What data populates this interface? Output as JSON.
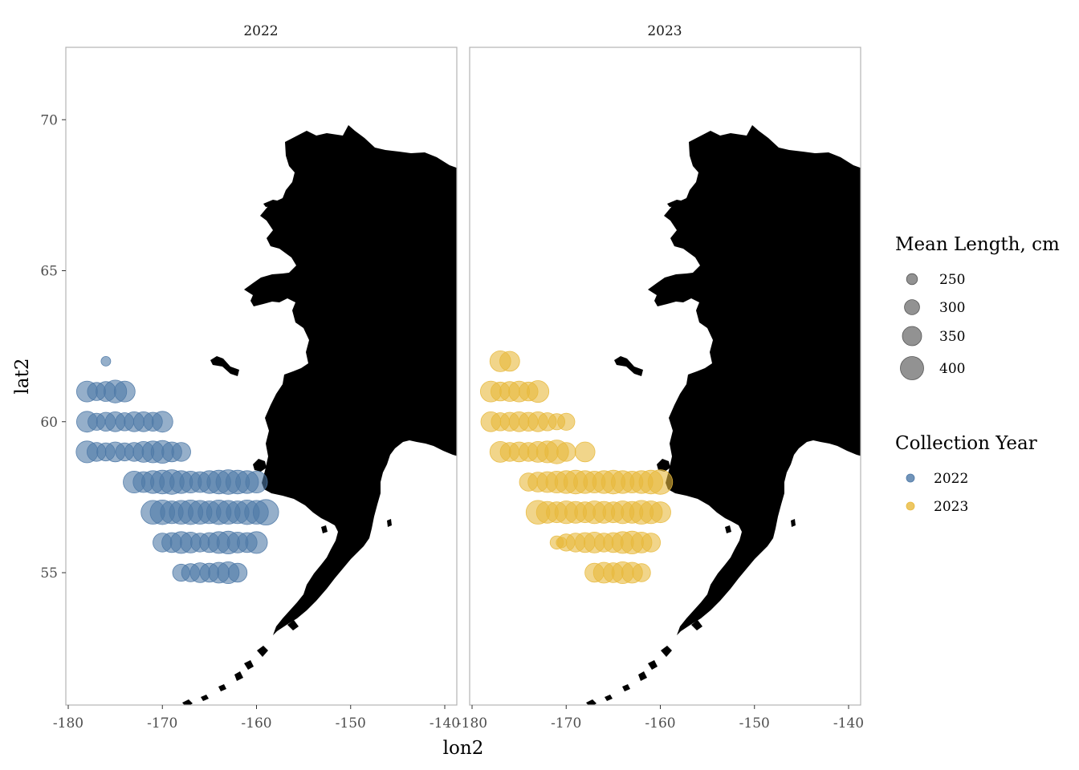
{
  "chart_data": {
    "type": "scatter",
    "xlabel": "lon2",
    "ylabel": "lat2",
    "xlim": [
      -180,
      -140
    ],
    "ylim": [
      51.5,
      72
    ],
    "x_ticks": [
      -180,
      -170,
      -160,
      -150,
      -140
    ],
    "y_ticks": [
      55,
      60,
      65,
      70
    ],
    "x_tick_labels": [
      "-180",
      "-170",
      "-160",
      "-150",
      "-140"
    ],
    "y_tick_labels": [
      "55",
      "60",
      "65",
      "70"
    ],
    "panels": [
      {
        "strip": "2022",
        "color": "#4e79a7",
        "points": [
          [
            -176,
            62,
            220
          ],
          [
            -178,
            61,
            340
          ],
          [
            -177,
            61,
            310
          ],
          [
            -176,
            61,
            330
          ],
          [
            -175,
            61,
            360
          ],
          [
            -174,
            61,
            340
          ],
          [
            -178,
            60,
            340
          ],
          [
            -177,
            60,
            300
          ],
          [
            -176,
            60,
            320
          ],
          [
            -175,
            60,
            330
          ],
          [
            -174,
            60,
            310
          ],
          [
            -173,
            60,
            330
          ],
          [
            -172,
            60,
            330
          ],
          [
            -171,
            60,
            320
          ],
          [
            -170,
            60,
            340
          ],
          [
            -178,
            59,
            350
          ],
          [
            -177,
            59,
            320
          ],
          [
            -176,
            59,
            310
          ],
          [
            -175,
            59,
            330
          ],
          [
            -174,
            59,
            310
          ],
          [
            -173,
            59,
            320
          ],
          [
            -172,
            59,
            340
          ],
          [
            -171,
            59,
            350
          ],
          [
            -170,
            59,
            360
          ],
          [
            -169,
            59,
            330
          ],
          [
            -168,
            59,
            320
          ],
          [
            -173,
            58,
            350
          ],
          [
            -172,
            58,
            340
          ],
          [
            -171,
            58,
            360
          ],
          [
            -170,
            58,
            370
          ],
          [
            -169,
            58,
            380
          ],
          [
            -168,
            58,
            360
          ],
          [
            -167,
            58,
            350
          ],
          [
            -166,
            58,
            340
          ],
          [
            -165,
            58,
            360
          ],
          [
            -164,
            58,
            370
          ],
          [
            -163,
            58,
            380
          ],
          [
            -162,
            58,
            370
          ],
          [
            -161,
            58,
            360
          ],
          [
            -160,
            58,
            350
          ],
          [
            -171,
            57,
            370
          ],
          [
            -170,
            57,
            380
          ],
          [
            -169,
            57,
            360
          ],
          [
            -168,
            57,
            370
          ],
          [
            -167,
            57,
            380
          ],
          [
            -166,
            57,
            370
          ],
          [
            -165,
            57,
            360
          ],
          [
            -164,
            57,
            380
          ],
          [
            -163,
            57,
            370
          ],
          [
            -162,
            57,
            360
          ],
          [
            -161,
            57,
            380
          ],
          [
            -160,
            57,
            370
          ],
          [
            -159,
            57,
            390
          ],
          [
            -170,
            56,
            320
          ],
          [
            -169,
            56,
            330
          ],
          [
            -168,
            56,
            350
          ],
          [
            -167,
            56,
            340
          ],
          [
            -166,
            56,
            320
          ],
          [
            -165,
            56,
            330
          ],
          [
            -164,
            56,
            350
          ],
          [
            -163,
            56,
            360
          ],
          [
            -162,
            56,
            340
          ],
          [
            -161,
            56,
            330
          ],
          [
            -160,
            56,
            350
          ],
          [
            -168,
            55,
            300
          ],
          [
            -167,
            55,
            310
          ],
          [
            -166,
            55,
            330
          ],
          [
            -165,
            55,
            320
          ],
          [
            -164,
            55,
            340
          ],
          [
            -163,
            55,
            350
          ],
          [
            -162,
            55,
            320
          ]
        ]
      },
      {
        "strip": "2023",
        "color": "#e8b93c",
        "points": [
          [
            -177,
            62,
            340
          ],
          [
            -176,
            62,
            330
          ],
          [
            -178,
            61,
            340
          ],
          [
            -177,
            61,
            320
          ],
          [
            -176,
            61,
            330
          ],
          [
            -175,
            61,
            340
          ],
          [
            -174,
            61,
            320
          ],
          [
            -173,
            61,
            350
          ],
          [
            -178,
            60,
            330
          ],
          [
            -177,
            60,
            310
          ],
          [
            -176,
            60,
            320
          ],
          [
            -175,
            60,
            330
          ],
          [
            -174,
            60,
            320
          ],
          [
            -173,
            60,
            330
          ],
          [
            -172,
            60,
            310
          ],
          [
            -171,
            60,
            290
          ],
          [
            -170,
            60,
            300
          ],
          [
            -177,
            59,
            340
          ],
          [
            -176,
            59,
            320
          ],
          [
            -175,
            59,
            330
          ],
          [
            -174,
            59,
            320
          ],
          [
            -173,
            59,
            340
          ],
          [
            -172,
            59,
            350
          ],
          [
            -171,
            59,
            370
          ],
          [
            -170,
            59,
            320
          ],
          [
            -168,
            59,
            330
          ],
          [
            -174,
            58,
            310
          ],
          [
            -173,
            58,
            330
          ],
          [
            -172,
            58,
            340
          ],
          [
            -171,
            58,
            350
          ],
          [
            -170,
            58,
            360
          ],
          [
            -169,
            58,
            370
          ],
          [
            -168,
            58,
            360
          ],
          [
            -167,
            58,
            350
          ],
          [
            -166,
            58,
            360
          ],
          [
            -165,
            58,
            370
          ],
          [
            -164,
            58,
            360
          ],
          [
            -163,
            58,
            350
          ],
          [
            -162,
            58,
            360
          ],
          [
            -161,
            58,
            370
          ],
          [
            -160,
            58,
            380
          ],
          [
            -173,
            57,
            370
          ],
          [
            -172,
            57,
            350
          ],
          [
            -171,
            57,
            340
          ],
          [
            -170,
            57,
            360
          ],
          [
            -169,
            57,
            350
          ],
          [
            -168,
            57,
            340
          ],
          [
            -167,
            57,
            360
          ],
          [
            -166,
            57,
            350
          ],
          [
            -165,
            57,
            340
          ],
          [
            -164,
            57,
            360
          ],
          [
            -163,
            57,
            350
          ],
          [
            -162,
            57,
            370
          ],
          [
            -161,
            57,
            360
          ],
          [
            -160,
            57,
            340
          ],
          [
            -171,
            56,
            260
          ],
          [
            -170.5,
            56,
            230
          ],
          [
            -170,
            56,
            300
          ],
          [
            -169,
            56,
            320
          ],
          [
            -168,
            56,
            330
          ],
          [
            -167,
            56,
            340
          ],
          [
            -166,
            56,
            320
          ],
          [
            -165,
            56,
            330
          ],
          [
            -164,
            56,
            350
          ],
          [
            -163,
            56,
            360
          ],
          [
            -162,
            56,
            340
          ],
          [
            -161,
            56,
            320
          ],
          [
            -167,
            55,
            320
          ],
          [
            -166,
            55,
            340
          ],
          [
            -165,
            55,
            330
          ],
          [
            -164,
            55,
            350
          ],
          [
            -163,
            55,
            340
          ],
          [
            -162,
            55,
            310
          ]
        ]
      }
    ],
    "legends": {
      "size": {
        "title": "Mean Length, cm",
        "items": [
          250,
          300,
          350,
          400
        ],
        "labels": [
          "250",
          "300",
          "350",
          "400"
        ],
        "color": "#7f7f7f"
      },
      "color": {
        "title": "Collection Year",
        "items": [
          {
            "label": "2022",
            "color": "#4e79a7"
          },
          {
            "label": "2023",
            "color": "#e8b93c"
          }
        ]
      },
      "placement": "right"
    },
    "grid": false,
    "land_color": "#000000",
    "point_alpha": 0.6
  }
}
